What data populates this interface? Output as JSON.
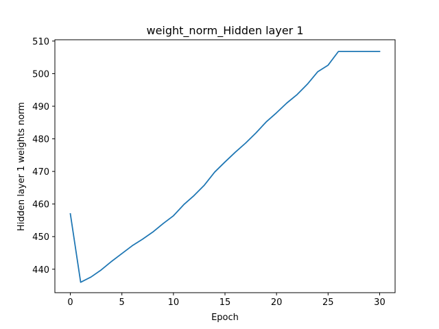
{
  "chart_data": {
    "type": "line",
    "title": "weight_norm_Hidden layer 1",
    "xlabel": "Epoch",
    "ylabel": "Hidden layer 1 weights norm",
    "xlim": [
      -1.5,
      31.5
    ],
    "ylim": [
      432.8,
      510.4
    ],
    "xticks": [
      0,
      5,
      10,
      15,
      20,
      25,
      30
    ],
    "yticks": [
      440,
      450,
      460,
      470,
      480,
      490,
      500,
      510
    ],
    "grid": false,
    "colors": {
      "line": "#1f77b4",
      "axes": "#000000",
      "background": "#ffffff"
    },
    "series": [
      {
        "x": [
          0,
          1,
          2,
          3,
          4,
          5,
          6,
          7,
          8,
          9,
          10,
          11,
          12,
          13,
          14,
          15,
          16,
          17,
          18,
          19,
          20,
          21,
          22,
          23,
          24,
          25,
          26,
          27,
          28,
          29,
          30
        ],
        "values": [
          457.0,
          436.0,
          437.6,
          439.8,
          442.4,
          444.8,
          447.2,
          449.2,
          451.4,
          454.0,
          456.4,
          459.8,
          462.6,
          465.8,
          469.8,
          472.9,
          475.9,
          478.7,
          481.8,
          485.2,
          488.0,
          491.0,
          493.6,
          496.8,
          500.6,
          502.6,
          506.8,
          506.8,
          506.8,
          506.8,
          506.8
        ]
      }
    ]
  }
}
